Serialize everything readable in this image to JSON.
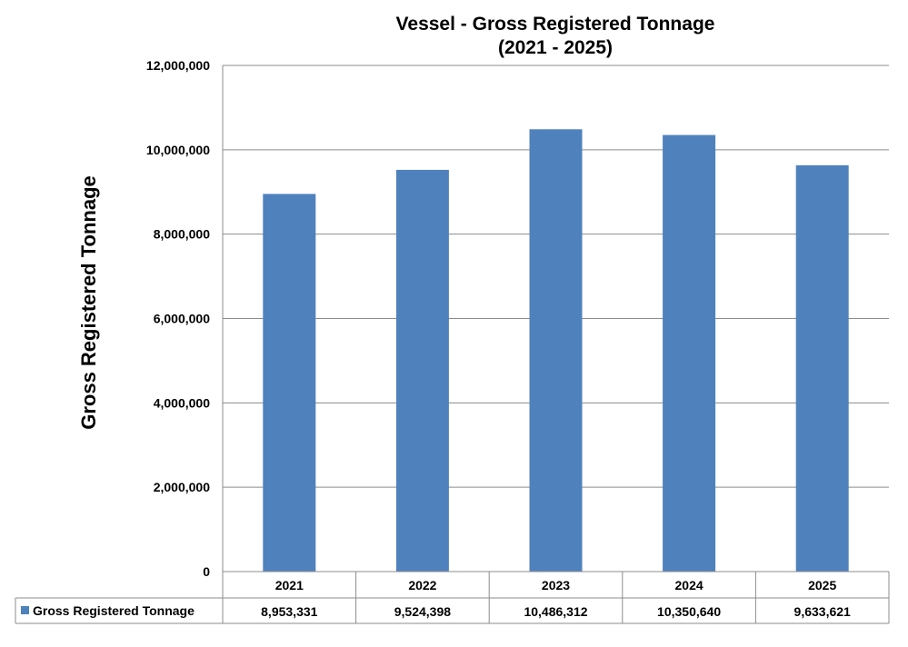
{
  "chart_data": {
    "type": "bar",
    "title_line1": "Vessel - Gross Registered Tonnage",
    "title_line2": "(2021 - 2025)",
    "ylabel": "Gross Registered Tonnage",
    "xlabel": "",
    "categories": [
      "2021",
      "2022",
      "2023",
      "2024",
      "2025"
    ],
    "series": [
      {
        "name": "Gross Registered Tonnage",
        "values": [
          8953331,
          9524398,
          10486312,
          10350640,
          9633621
        ],
        "value_labels": [
          "8,953,331",
          "9,524,398",
          "10,486,312",
          "10,350,640",
          "9,633,621"
        ],
        "color": "#4f81bd"
      }
    ],
    "yticks": [
      0,
      2000000,
      4000000,
      6000000,
      8000000,
      10000000,
      12000000
    ],
    "ytick_labels": [
      "0",
      "2,000,000",
      "4,000,000",
      "6,000,000",
      "8,000,000",
      "10,000,000",
      "12,000,000"
    ],
    "ylim": [
      0,
      12000000
    ],
    "grid": true,
    "legend": "data-table"
  }
}
